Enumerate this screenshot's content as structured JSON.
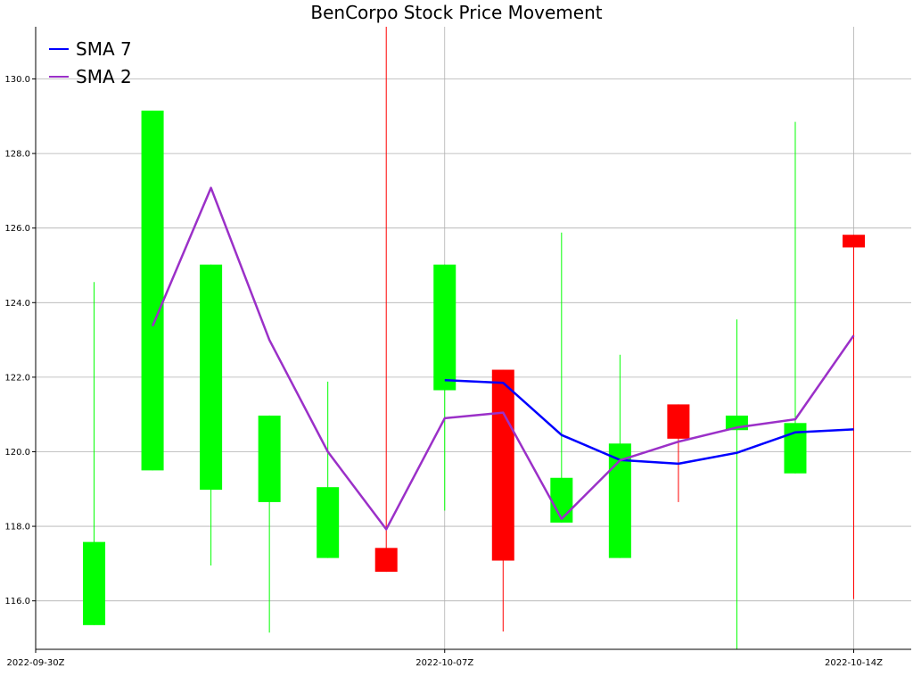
{
  "chart_data": {
    "type": "candlestick",
    "title": "BenCorpo Stock Price Movement",
    "xlabel": "",
    "ylabel": "",
    "ylim": [
      114.7,
      131.4
    ],
    "grid": true,
    "legend_position": "top-left",
    "x_ticks": [
      "2022-09-30Z",
      "2022-10-07Z",
      "2022-10-14Z"
    ],
    "y_ticks": [
      "116.0",
      "118.0",
      "120.0",
      "122.0",
      "124.0",
      "126.0",
      "128.0",
      "130.0"
    ],
    "candles": [
      {
        "date": "2022-10-01",
        "open": 115.35,
        "close": 117.58,
        "high": 124.55,
        "low": 115.35
      },
      {
        "date": "2022-10-02",
        "open": 119.5,
        "close": 129.15,
        "high": 129.15,
        "low": 119.5
      },
      {
        "date": "2022-10-03",
        "open": 118.98,
        "close": 125.02,
        "high": 125.02,
        "low": 116.95
      },
      {
        "date": "2022-10-04",
        "open": 118.65,
        "close": 120.97,
        "high": 120.97,
        "low": 115.15
      },
      {
        "date": "2022-10-05",
        "open": 117.15,
        "close": 119.05,
        "high": 121.88,
        "low": 117.15
      },
      {
        "date": "2022-10-06",
        "open": 117.42,
        "close": 116.78,
        "high": 131.4,
        "low": 116.78
      },
      {
        "date": "2022-10-07",
        "open": 121.65,
        "close": 125.02,
        "high": 125.02,
        "low": 118.42
      },
      {
        "date": "2022-10-08",
        "open": 122.2,
        "close": 117.08,
        "high": 122.2,
        "low": 115.18
      },
      {
        "date": "2022-10-09",
        "open": 118.1,
        "close": 119.3,
        "high": 125.88,
        "low": 118.1
      },
      {
        "date": "2022-10-10",
        "open": 117.15,
        "close": 120.22,
        "high": 122.6,
        "low": 117.15
      },
      {
        "date": "2022-10-11",
        "open": 121.27,
        "close": 120.35,
        "high": 121.27,
        "low": 118.65
      },
      {
        "date": "2022-10-12",
        "open": 120.58,
        "close": 120.97,
        "high": 123.55,
        "low": 114.7
      },
      {
        "date": "2022-10-13",
        "open": 119.42,
        "close": 120.77,
        "high": 128.85,
        "low": 119.42
      },
      {
        "date": "2022-10-14",
        "open": 125.82,
        "close": 125.48,
        "high": 125.82,
        "low": 116.05
      }
    ],
    "series": [
      {
        "name": "SMA 7",
        "color": "#0000ff",
        "x": [
          "2022-10-07",
          "2022-10-08",
          "2022-10-09",
          "2022-10-10",
          "2022-10-11",
          "2022-10-12",
          "2022-10-13",
          "2022-10-14"
        ],
        "values": [
          121.92,
          121.85,
          120.45,
          119.78,
          119.68,
          119.97,
          120.52,
          120.6
        ]
      },
      {
        "name": "SMA 2",
        "color": "#9b30c8",
        "x": [
          "2022-10-02",
          "2022-10-03",
          "2022-10-04",
          "2022-10-05",
          "2022-10-06",
          "2022-10-07",
          "2022-10-08",
          "2022-10-09",
          "2022-10-10",
          "2022-10-11",
          "2022-10-12",
          "2022-10-13",
          "2022-10-14"
        ],
        "values": [
          123.37,
          127.08,
          123.0,
          120.0,
          117.92,
          120.9,
          121.05,
          118.2,
          119.77,
          120.27,
          120.65,
          120.87,
          123.12
        ]
      }
    ],
    "colors": {
      "up": "#00ff00",
      "down": "#ff0000",
      "grid": "#b0b0b0",
      "axis": "#000000"
    }
  }
}
